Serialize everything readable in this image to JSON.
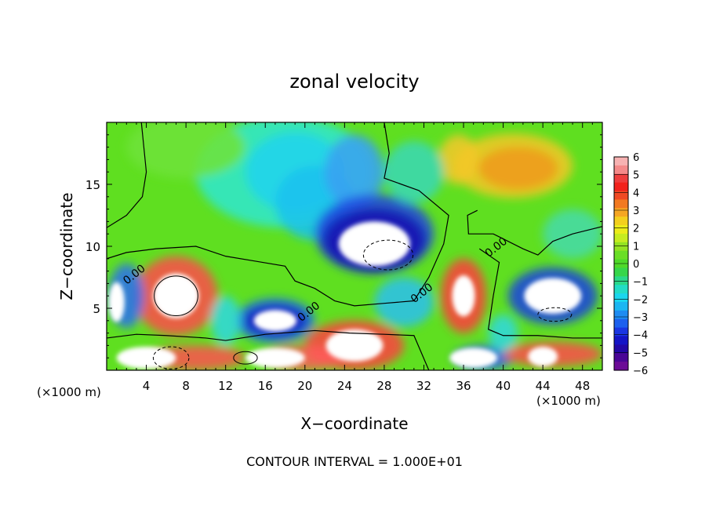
{
  "chart_data": {
    "type": "heatmap",
    "title": "zonal velocity",
    "xlabel": "X−coordinate",
    "ylabel": "Z−coordinate",
    "x_unit_left": "(×1000 m)",
    "x_unit_right": "(×1000 m)",
    "footer": "CONTOUR INTERVAL = 1.000E+01",
    "xlim": [
      0,
      50
    ],
    "ylim": [
      0,
      20
    ],
    "x_ticks": [
      4,
      8,
      12,
      16,
      20,
      24,
      28,
      32,
      36,
      40,
      44,
      48
    ],
    "y_ticks": [
      5,
      10,
      15
    ],
    "colorbar": {
      "range": [
        -6,
        6
      ],
      "labels": [
        "6",
        "5",
        "4",
        "3",
        "2",
        "1",
        "0",
        "−1",
        "−2",
        "−3",
        "−4",
        "−5",
        "−6"
      ]
    },
    "contour_labels": [
      {
        "text": "0.00",
        "x": 3,
        "z": 7.5
      },
      {
        "text": "0.00",
        "x": 20.6,
        "z": 4.5
      },
      {
        "text": "0.00",
        "x": 32,
        "z": 6
      },
      {
        "text": "0.00",
        "x": 39.5,
        "z": 9.7
      }
    ],
    "features": [
      {
        "kind": "saturated-positive",
        "x": 7,
        "z": 6,
        "rx": 3.2,
        "rz": 2.5
      },
      {
        "kind": "saturated-negative",
        "x": 27,
        "z": 10.2,
        "rx": 5,
        "rz": 2.5
      },
      {
        "kind": "saturated-positive",
        "x": 36,
        "z": 6,
        "rx": 1.6,
        "rz": 2.3
      },
      {
        "kind": "saturated-negative",
        "x": 17,
        "z": 4,
        "rx": 3,
        "rz": 1.2
      },
      {
        "kind": "saturated-positive",
        "x": 25,
        "z": 2,
        "rx": 4,
        "rz": 1.8
      },
      {
        "kind": "saturated-negative",
        "x": 45,
        "z": 6,
        "rx": 4,
        "rz": 2
      },
      {
        "kind": "positive",
        "x": 41,
        "z": 16,
        "rx": 5,
        "rz": 2.5
      },
      {
        "kind": "negative",
        "x": 19,
        "z": 16,
        "rx": 6,
        "rz": 4
      }
    ]
  }
}
